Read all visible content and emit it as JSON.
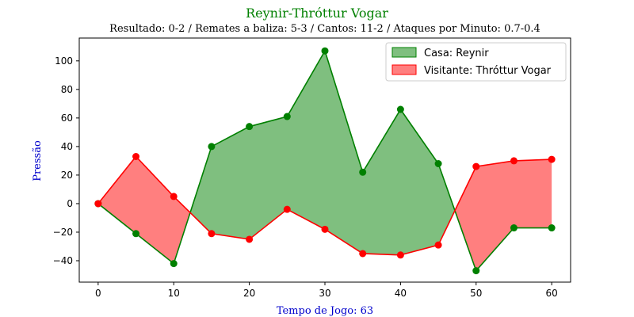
{
  "chart_data": {
    "type": "area",
    "title": "Reynir-Thróttur Vogar",
    "subtitle": "Resultado: 0-2 / Remates a baliza: 5-3 / Cantos: 11-2 / Ataques por Minuto: 0.7-0.4",
    "xlabel": "Tempo de Jogo: 63",
    "ylabel": "Pressão",
    "x": [
      0,
      5,
      10,
      15,
      20,
      25,
      30,
      35,
      40,
      45,
      50,
      55,
      60
    ],
    "xlim": [
      -2.5,
      62.5
    ],
    "ylim": [
      -55,
      116
    ],
    "xticks": [
      0,
      10,
      20,
      30,
      40,
      50,
      60
    ],
    "yticks": [
      -40,
      -20,
      0,
      20,
      40,
      60,
      80,
      100
    ],
    "series": [
      {
        "name": "Casa: Reynir",
        "color": "#008000",
        "fill": "#008000",
        "values": [
          0,
          -21,
          -42,
          40,
          54,
          61,
          107,
          22,
          66,
          28,
          -47,
          -17,
          -17
        ]
      },
      {
        "name": "Visitante: Thróttur Vogar",
        "color": "#ff0000",
        "fill": "#ff0000",
        "values": [
          0,
          33,
          5,
          -21,
          -25,
          -4,
          -18,
          -35,
          -36,
          -29,
          26,
          30,
          31
        ]
      }
    ],
    "legend": "top-right",
    "grid": false
  }
}
